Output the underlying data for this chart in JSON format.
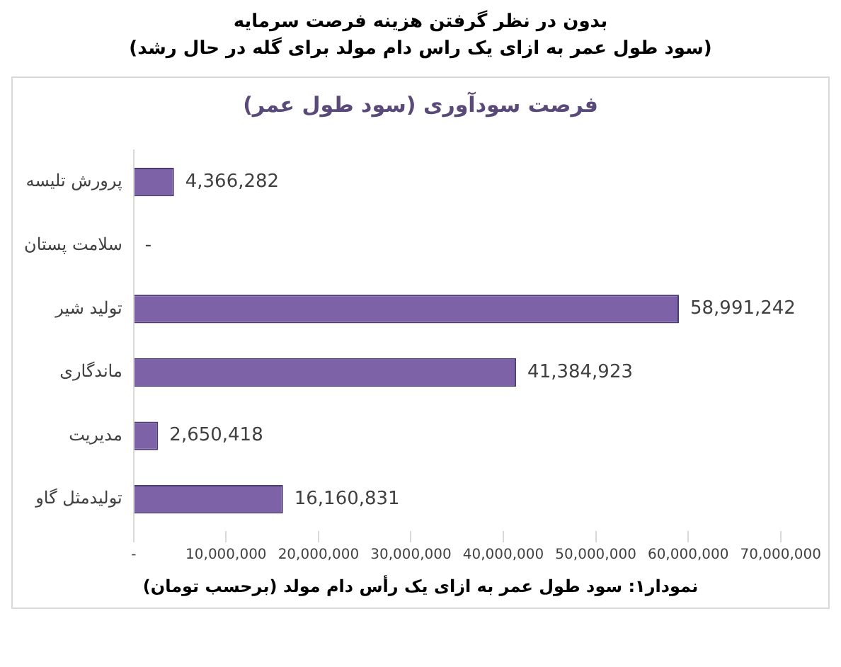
{
  "chart_data": {
    "type": "bar",
    "orientation": "horizontal",
    "title": "بدون در نظر گرفتن هزینه فرصت سرمایه",
    "subtitle": "(سود طول عمر به ازای یک راس دام مولد برای گله در حال رشد)",
    "annotations": [
      "فرصت سودآوری (سود طول عمر)"
    ],
    "xlabel": "نمودار۱: سود طول عمر به ازای یک رأس دام مولد (برحسب تومان)",
    "categories": [
      "پرورش تلیسه",
      "سلامت پستان",
      "تولید شیر",
      "ماندگاری",
      "مدیریت",
      "تولیدمثل گاو"
    ],
    "values": [
      4366282,
      0,
      58991242,
      41384923,
      2650418,
      16160831
    ],
    "value_labels": [
      "4,366,282",
      "-",
      "58,991,242",
      "41,384,923",
      "2,650,418",
      "16,160,831"
    ],
    "color": "#7e62a8",
    "xlim": [
      0,
      70000000
    ],
    "xticks": [
      {
        "value": 0,
        "label": "-"
      },
      {
        "value": 10000000,
        "label": "10,000,000"
      },
      {
        "value": 20000000,
        "label": "20,000,000"
      },
      {
        "value": 30000000,
        "label": "30,000,000"
      },
      {
        "value": 40000000,
        "label": "40,000,000"
      },
      {
        "value": 50000000,
        "label": "50,000,000"
      },
      {
        "value": 60000000,
        "label": "60,000,000"
      },
      {
        "value": 70000000,
        "label": "70,000,000"
      }
    ],
    "grid": false,
    "legend": false
  }
}
